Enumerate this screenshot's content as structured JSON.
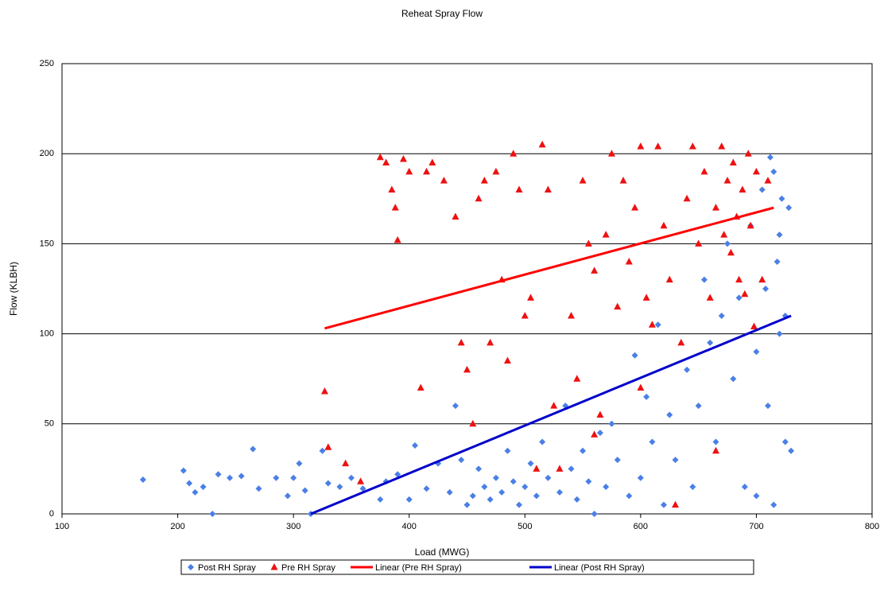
{
  "chart_data": {
    "type": "scatter",
    "title": "Reheat Spray Flow",
    "x_label": "Load (MWG)",
    "y_label": "Flow (KLBH)",
    "xlim": [
      100,
      800
    ],
    "xticks": [
      100,
      200,
      300,
      400,
      500,
      600,
      700,
      800
    ],
    "ylim": [
      0,
      250
    ],
    "yticks": [
      0,
      50,
      100,
      150,
      200,
      250
    ],
    "grid": true,
    "legend": "bottom",
    "series": [
      {
        "name": "Post RH Spray",
        "color": "#4a7fe6",
        "marker": "diamond",
        "x": [
          170,
          205,
          210,
          215,
          222,
          230,
          235,
          245,
          255,
          265,
          270,
          285,
          295,
          300,
          305,
          310,
          315,
          325,
          330,
          340,
          350,
          360,
          375,
          380,
          390,
          400,
          405,
          415,
          425,
          435,
          440,
          445,
          450,
          455,
          460,
          465,
          470,
          475,
          480,
          485,
          490,
          495,
          500,
          505,
          510,
          515,
          520,
          530,
          535,
          540,
          545,
          550,
          555,
          560,
          565,
          570,
          575,
          580,
          590,
          595,
          600,
          605,
          610,
          615,
          620,
          625,
          630,
          640,
          645,
          650,
          655,
          660,
          665,
          670,
          675,
          680,
          685,
          690,
          695,
          700,
          705,
          710,
          712,
          715,
          718,
          720,
          722,
          725,
          728,
          730,
          700,
          708,
          715,
          720,
          725
        ],
        "values": [
          19,
          24,
          17,
          12,
          15,
          0,
          22,
          20,
          21,
          36,
          14,
          20,
          10,
          20,
          28,
          13,
          0,
          35,
          17,
          15,
          20,
          14,
          8,
          18,
          22,
          8,
          38,
          14,
          28,
          12,
          60,
          30,
          5,
          10,
          25,
          15,
          8,
          20,
          12,
          35,
          18,
          5,
          15,
          28,
          10,
          40,
          20,
          12,
          60,
          25,
          8,
          35,
          18,
          0,
          45,
          15,
          50,
          30,
          10,
          88,
          20,
          65,
          40,
          105,
          5,
          55,
          30,
          80,
          15,
          60,
          130,
          95,
          40,
          110,
          150,
          75,
          120,
          15,
          160,
          90,
          180,
          60,
          198,
          5,
          140,
          100,
          175,
          40,
          170,
          35,
          10,
          125,
          190,
          155,
          110
        ]
      },
      {
        "name": "Pre RH Spray",
        "color": "#ee1111",
        "marker": "triangle",
        "x": [
          327,
          330,
          345,
          358,
          375,
          380,
          385,
          388,
          390,
          395,
          400,
          410,
          415,
          420,
          430,
          440,
          445,
          450,
          455,
          460,
          465,
          470,
          475,
          480,
          485,
          490,
          495,
          500,
          505,
          510,
          515,
          520,
          525,
          530,
          540,
          545,
          550,
          555,
          560,
          565,
          570,
          575,
          580,
          585,
          590,
          595,
          600,
          605,
          610,
          615,
          620,
          625,
          630,
          635,
          640,
          645,
          650,
          655,
          660,
          665,
          670,
          672,
          675,
          678,
          680,
          683,
          685,
          688,
          690,
          693,
          695,
          698,
          700,
          705,
          710,
          665,
          560,
          600
        ],
        "values": [
          68,
          37,
          28,
          18,
          198,
          195,
          180,
          170,
          152,
          197,
          190,
          70,
          190,
          195,
          185,
          165,
          95,
          80,
          50,
          175,
          185,
          95,
          190,
          130,
          85,
          200,
          180,
          110,
          120,
          25,
          205,
          180,
          60,
          25,
          110,
          75,
          185,
          150,
          135,
          55,
          155,
          200,
          115,
          185,
          140,
          170,
          204,
          120,
          105,
          204,
          160,
          130,
          5,
          95,
          175,
          204,
          150,
          190,
          120,
          170,
          204,
          155,
          185,
          145,
          195,
          165,
          130,
          180,
          122,
          200,
          160,
          104,
          190,
          130,
          185,
          35,
          44,
          70
        ]
      },
      {
        "name": "Linear (Pre RH Spray)",
        "color": "#ff0000",
        "marker": "line",
        "x": [
          327,
          715
        ],
        "values": [
          103,
          170
        ]
      },
      {
        "name": "Linear (Post RH Spray)",
        "color": "#0000cc",
        "marker": "line",
        "x": [
          315,
          730
        ],
        "values": [
          0,
          110
        ]
      }
    ]
  }
}
